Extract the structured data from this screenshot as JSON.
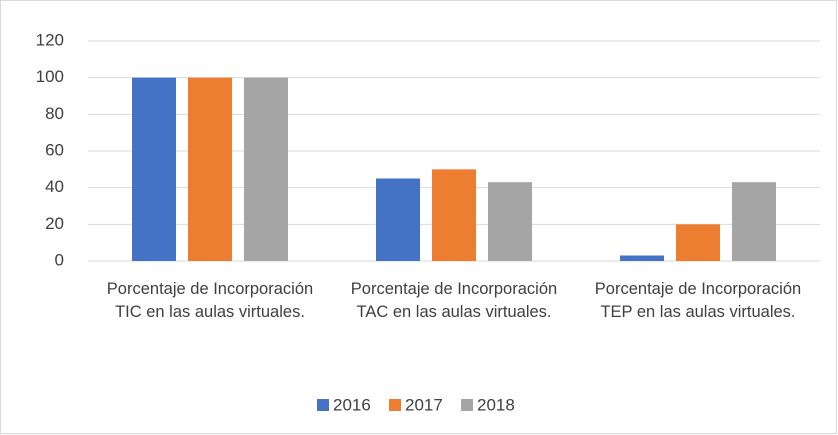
{
  "chart_data": {
    "type": "bar",
    "categories": [
      "Porcentaje de Incorporación TIC en las aulas virtuales.",
      "Porcentaje de Incorporación TAC en las aulas virtuales.",
      "Porcentaje de Incorporación TEP en las aulas virtuales."
    ],
    "series": [
      {
        "name": "2016",
        "color": "#4472c4",
        "values": [
          100,
          45,
          3
        ]
      },
      {
        "name": "2017",
        "color": "#ed7d31",
        "values": [
          100,
          50,
          20
        ]
      },
      {
        "name": "2018",
        "color": "#a5a5a5",
        "values": [
          100,
          43,
          43
        ]
      }
    ],
    "ylim": [
      0,
      120
    ],
    "yticks": [
      0,
      20,
      40,
      60,
      80,
      100,
      120
    ],
    "grid": true,
    "legend": "bottom"
  }
}
